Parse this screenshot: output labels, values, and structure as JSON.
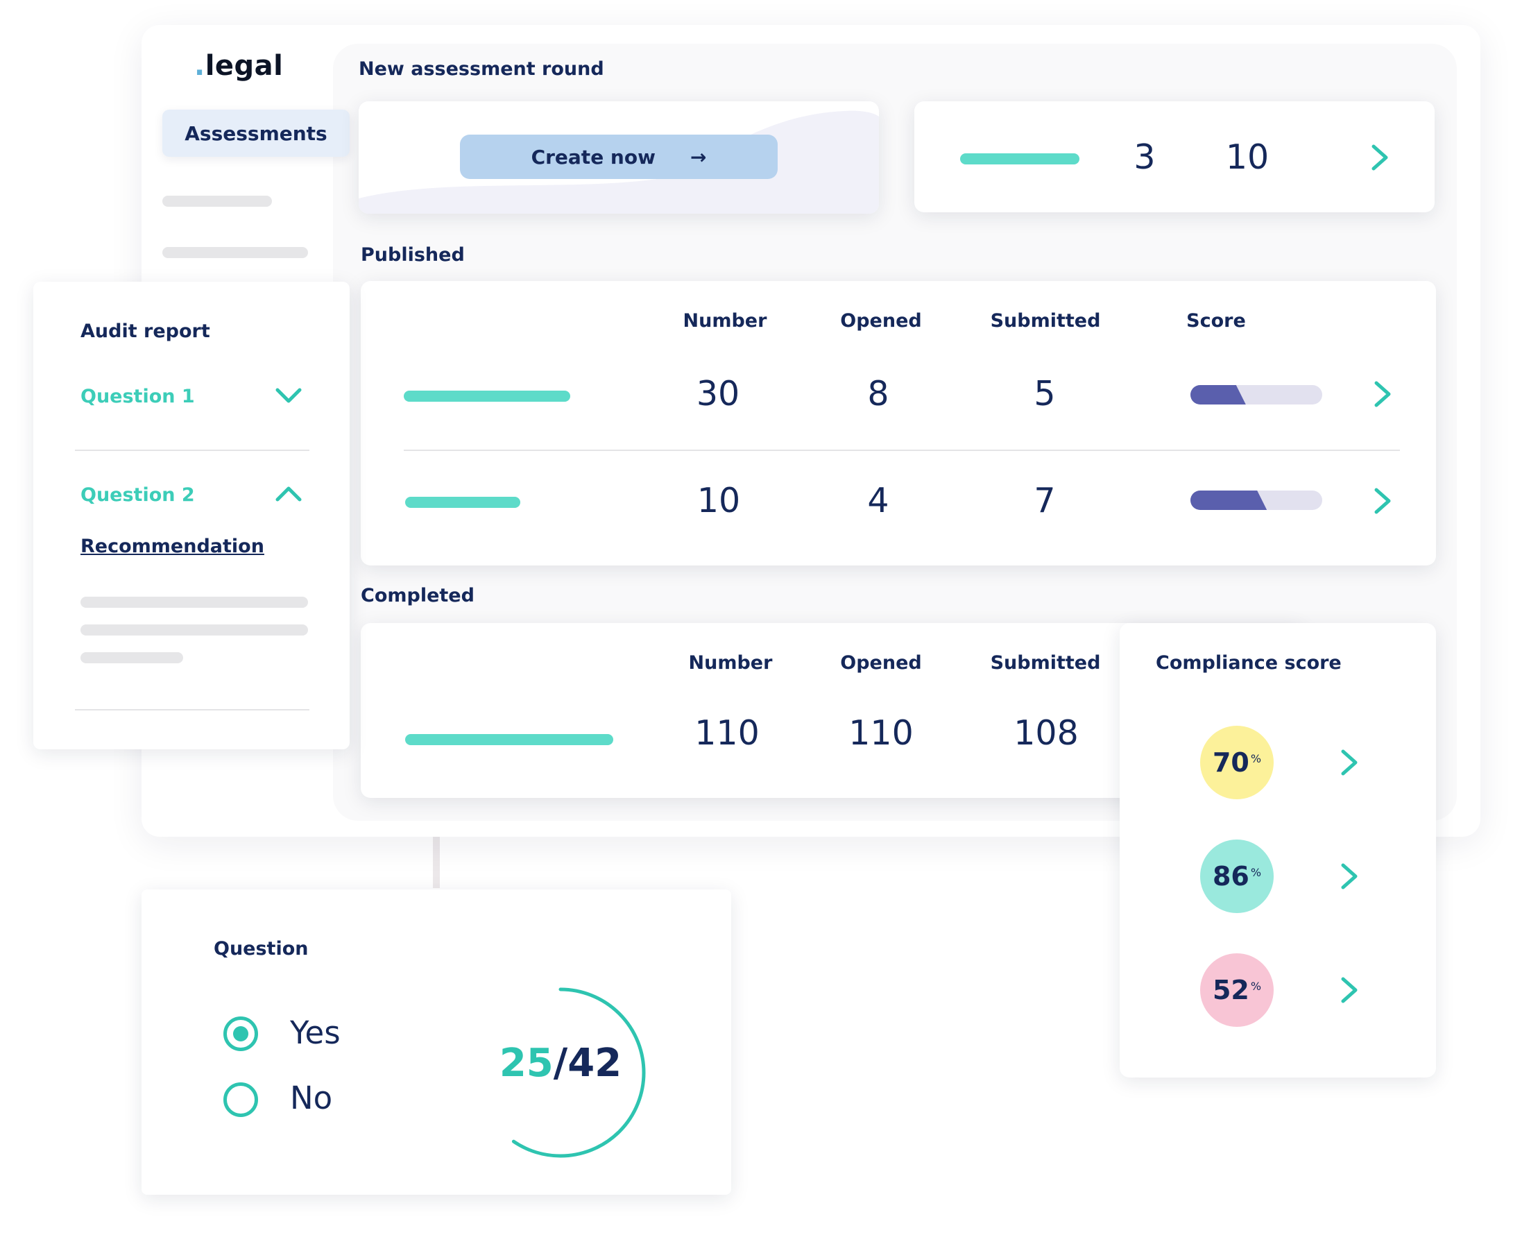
{
  "brand": {
    "dot": ".",
    "name": "legal"
  },
  "sidebar": {
    "active_item": "Assessments"
  },
  "new_round": {
    "title": "New assessment round",
    "create_button": "Create now",
    "arrow": "→",
    "stat_a": "3",
    "stat_b": "10"
  },
  "published": {
    "title": "Published",
    "columns": {
      "number": "Number",
      "opened": "Opened",
      "submitted": "Submitted",
      "score": "Score"
    },
    "rows": [
      {
        "number": "30",
        "opened": "8",
        "submitted": "5",
        "score_fraction": 0.42
      },
      {
        "number": "10",
        "opened": "4",
        "submitted": "7",
        "score_fraction": 0.58
      }
    ]
  },
  "completed": {
    "title": "Completed",
    "columns": {
      "number": "Number",
      "opened": "Opened",
      "submitted": "Submitted"
    },
    "row": {
      "number": "110",
      "opened": "110",
      "submitted": "108"
    }
  },
  "compliance": {
    "title": "Compliance score",
    "scores": [
      {
        "value": "70",
        "unit": "%",
        "color": "#fcf19a"
      },
      {
        "value": "86",
        "unit": "%",
        "color": "#9ae9dd"
      },
      {
        "value": "52",
        "unit": "%",
        "color": "#f8c5d5"
      }
    ]
  },
  "audit": {
    "title": "Audit report",
    "q1": "Question 1",
    "q2": "Question 2",
    "recommendation": "Recommendation"
  },
  "question_card": {
    "title": "Question",
    "options": [
      {
        "label": "Yes",
        "selected": true
      },
      {
        "label": "No",
        "selected": false
      }
    ],
    "answered": "25",
    "separator": "/",
    "total": "42",
    "progress_fraction": 0.595
  },
  "colors": {
    "teal": "#2ec4b0",
    "navy": "#15285a",
    "score_fill": "#5a5fad",
    "button": "#b6d2ee"
  }
}
